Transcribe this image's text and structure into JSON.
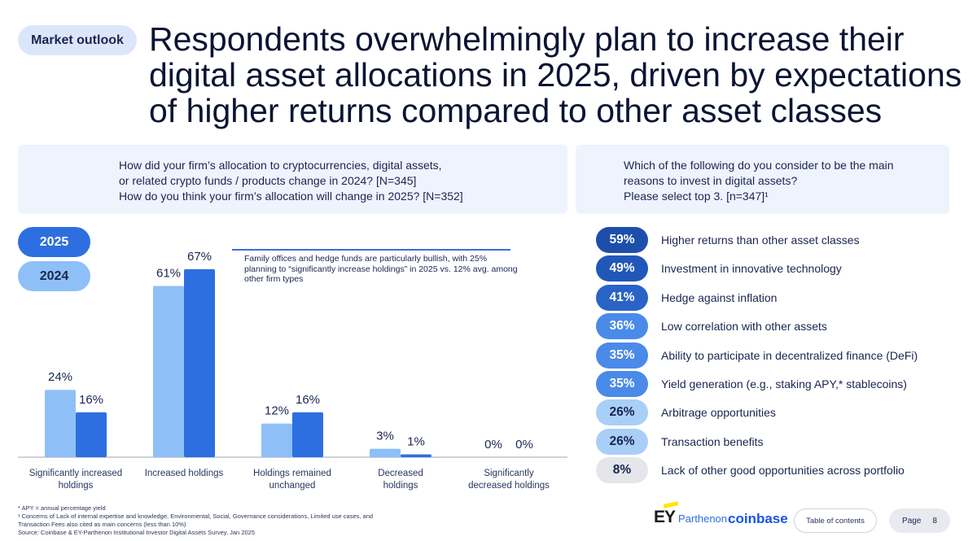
{
  "tag": "Market outlook",
  "headline": [
    "Respondents overwhelmingly plan to increase their",
    "digital asset allocations in 2025, driven by expectations",
    "of higher returns compared to other asset classes"
  ],
  "left_question": [
    "How did your firm’s allocation to cryptocurrencies, digital assets,",
    "or related crypto funds / products change in 2024? [N=345]",
    "How do you think your firm’s allocation will change in 2025? [N=352]"
  ],
  "right_question": [
    "Which of the following do you consider to be the main",
    "reasons to invest in digital assets?",
    "Please select top 3. [n=347]¹"
  ],
  "legend": {
    "y2025": "2025",
    "y2024": "2024"
  },
  "callout": "Family offices and hedge funds are particularly bullish, with 25% planning to “significantly increase holdings” in 2025 vs. 12% avg. among other firm types",
  "chart_data": [
    {
      "type": "bar",
      "categories": [
        [
          "Significantly increased",
          "holdings"
        ],
        [
          "Increased holdings"
        ],
        [
          "Holdings remained",
          "unchanged"
        ],
        [
          "Decreased",
          "holdings"
        ],
        [
          "Significantly",
          "decreased holdings"
        ]
      ],
      "series": [
        {
          "name": "2024",
          "values": [
            24,
            61,
            12,
            3,
            0
          ],
          "labels": [
            "24%",
            "61%",
            "12%",
            "3%",
            "0%"
          ],
          "color": "#8ec0f7"
        },
        {
          "name": "2025",
          "values": [
            16,
            67,
            16,
            1,
            0
          ],
          "labels": [
            "16%",
            "67%",
            "16%",
            "1%",
            "0%"
          ],
          "color": "#2d6fe0"
        }
      ],
      "ylim": [
        0,
        70
      ]
    },
    {
      "type": "table",
      "rows": [
        {
          "pct": "59%",
          "label": "Higher returns than other asset classes",
          "bg": "#1d4faa",
          "fg": "#ffffff"
        },
        {
          "pct": "49%",
          "label": "Investment in innovative technology",
          "bg": "#2157b8",
          "fg": "#ffffff"
        },
        {
          "pct": "41%",
          "label": "Hedge against inflation",
          "bg": "#2a63c8",
          "fg": "#ffffff"
        },
        {
          "pct": "36%",
          "label": "Low correlation with other assets",
          "bg": "#4a8ae8",
          "fg": "#ffffff"
        },
        {
          "pct": "35%",
          "label": "Ability to participate in decentralized finance (DeFi)",
          "bg": "#4a8ae8",
          "fg": "#ffffff"
        },
        {
          "pct": "35%",
          "label": "Yield generation (e.g., staking APY,* stablecoins)",
          "bg": "#4a8ae8",
          "fg": "#ffffff"
        },
        {
          "pct": "26%",
          "label": "Arbitrage opportunities",
          "bg": "#a9cff8",
          "fg": "#1a2550"
        },
        {
          "pct": "26%",
          "label": "Transaction benefits",
          "bg": "#a9cff8",
          "fg": "#1a2550"
        },
        {
          "pct": "8%",
          "label": "Lack of other good opportunities across portfolio",
          "bg": "#e4e6ea",
          "fg": "#1a2550"
        }
      ]
    }
  ],
  "footnotes": [
    "* APY = annual percentage yield",
    "¹ Concerns of Lack of internal expertise and knowledge, Environmental, Social, Governance considerations, Limited use cases, and",
    "Transaction Fees also cited as main concerns (less than 10%)",
    "Source: Coinbase & EY-Parthenon Institutional Investor Digital Assets Survey, Jan 2025"
  ],
  "brand": {
    "ey": "EY",
    "parthenon": "Parthenon",
    "coinbase": "coinbase"
  },
  "nav": {
    "toc": "Table of contents",
    "page_label": "Page",
    "page_number": "8"
  }
}
